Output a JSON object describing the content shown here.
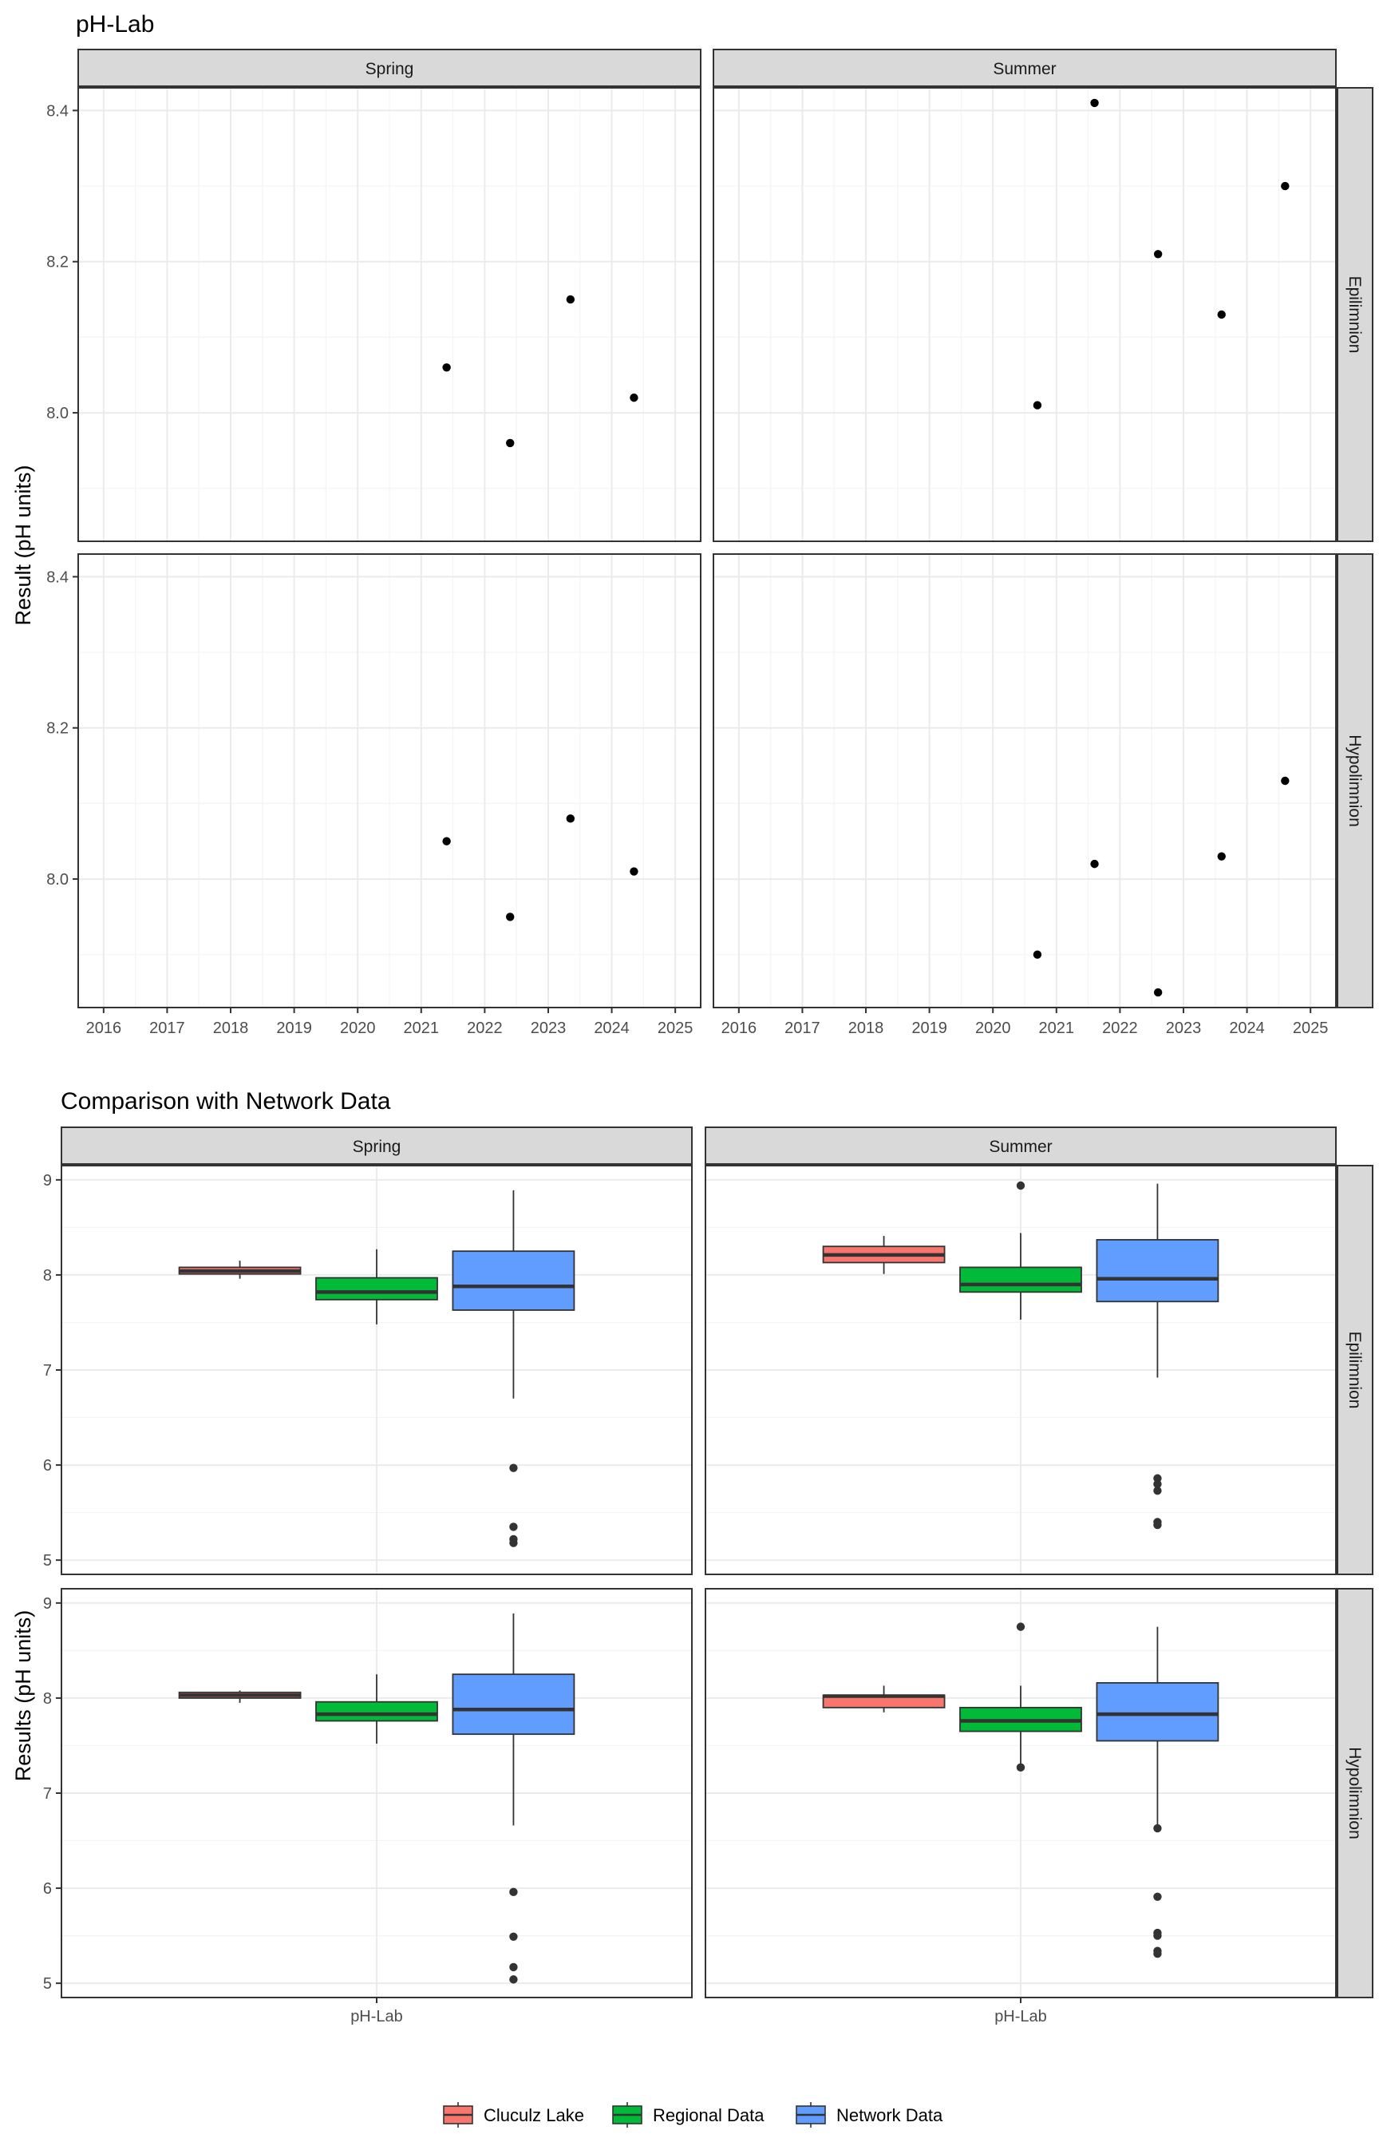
{
  "colors": {
    "cluculz": "#F8766D",
    "regional": "#00BA38",
    "network": "#619CFF",
    "point": "#000000",
    "outlier": "#333333"
  },
  "legend": {
    "items": [
      {
        "key": "cluculz",
        "label": "Cluculz Lake"
      },
      {
        "key": "regional",
        "label": "Regional Data"
      },
      {
        "key": "network",
        "label": "Network Data"
      }
    ]
  },
  "chart_data": [
    {
      "type": "scatter",
      "title": "pH-Lab",
      "ylabel": "Result (pH units)",
      "xlabel": "",
      "xlim": [
        2015.6,
        2025.4
      ],
      "ylim": [
        7.83,
        8.43
      ],
      "x_ticks": [
        2016,
        2017,
        2018,
        2019,
        2020,
        2021,
        2022,
        2023,
        2024,
        2025
      ],
      "x_tick_labels": [
        "2016",
        "2017",
        "2018",
        "2019",
        "2020",
        "2021",
        "2022",
        "2023",
        "2024",
        "2025"
      ],
      "y_ticks": [
        8.0,
        8.2,
        8.4
      ],
      "y_tick_labels": [
        "8.0",
        "8.2",
        "8.4"
      ],
      "columns": [
        "Spring",
        "Summer"
      ],
      "rows": [
        "Epilimnion",
        "Hypolimnion"
      ],
      "panels": [
        {
          "season": "Spring",
          "layer": "Epilimnion",
          "points": [
            {
              "x": 2021.4,
              "y": 8.06
            },
            {
              "x": 2022.4,
              "y": 7.96
            },
            {
              "x": 2023.35,
              "y": 8.15
            },
            {
              "x": 2024.35,
              "y": 8.02
            }
          ]
        },
        {
          "season": "Summer",
          "layer": "Epilimnion",
          "points": [
            {
              "x": 2020.7,
              "y": 8.01
            },
            {
              "x": 2021.6,
              "y": 8.41
            },
            {
              "x": 2022.6,
              "y": 8.21
            },
            {
              "x": 2023.6,
              "y": 8.13
            },
            {
              "x": 2024.6,
              "y": 8.3
            }
          ]
        },
        {
          "season": "Spring",
          "layer": "Hypolimnion",
          "points": [
            {
              "x": 2021.4,
              "y": 8.05
            },
            {
              "x": 2022.4,
              "y": 7.95
            },
            {
              "x": 2023.35,
              "y": 8.08
            },
            {
              "x": 2024.35,
              "y": 8.01
            }
          ]
        },
        {
          "season": "Summer",
          "layer": "Hypolimnion",
          "points": [
            {
              "x": 2020.7,
              "y": 7.9
            },
            {
              "x": 2021.6,
              "y": 8.02
            },
            {
              "x": 2022.6,
              "y": 7.85
            },
            {
              "x": 2023.6,
              "y": 8.03
            },
            {
              "x": 2024.6,
              "y": 8.13
            }
          ]
        }
      ]
    },
    {
      "type": "box",
      "title": "Comparison with Network Data",
      "ylabel": "Results (pH units)",
      "xlabel": "",
      "category": "pH-Lab",
      "ylim": [
        4.85,
        9.15
      ],
      "y_ticks": [
        5,
        6,
        7,
        8,
        9
      ],
      "y_tick_labels": [
        "5",
        "6",
        "7",
        "8",
        "9"
      ],
      "columns": [
        "Spring",
        "Summer"
      ],
      "rows": [
        "Epilimnion",
        "Hypolimnion"
      ],
      "legend_position": "bottom",
      "panels": [
        {
          "season": "Spring",
          "layer": "Epilimnion",
          "boxes": [
            {
              "group": "cluculz",
              "min": 7.96,
              "q1": 8.01,
              "median": 8.04,
              "q3": 8.08,
              "max": 8.15,
              "outliers": []
            },
            {
              "group": "regional",
              "min": 7.48,
              "q1": 7.74,
              "median": 7.82,
              "q3": 7.97,
              "max": 8.27,
              "outliers": []
            },
            {
              "group": "network",
              "min": 6.7,
              "q1": 7.63,
              "median": 7.88,
              "q3": 8.25,
              "max": 8.89,
              "outliers": [
                5.97,
                5.35,
                5.22,
                5.18
              ]
            }
          ]
        },
        {
          "season": "Summer",
          "layer": "Epilimnion",
          "boxes": [
            {
              "group": "cluculz",
              "min": 8.01,
              "q1": 8.13,
              "median": 8.21,
              "q3": 8.3,
              "max": 8.41,
              "outliers": []
            },
            {
              "group": "regional",
              "min": 7.53,
              "q1": 7.82,
              "median": 7.9,
              "q3": 8.08,
              "max": 8.44,
              "outliers": [
                8.94
              ]
            },
            {
              "group": "network",
              "min": 6.92,
              "q1": 7.72,
              "median": 7.96,
              "q3": 8.37,
              "max": 8.96,
              "outliers": [
                5.86,
                5.8,
                5.73,
                5.4,
                5.37
              ]
            }
          ]
        },
        {
          "season": "Spring",
          "layer": "Hypolimnion",
          "boxes": [
            {
              "group": "cluculz",
              "min": 7.95,
              "q1": 8.0,
              "median": 8.03,
              "q3": 8.06,
              "max": 8.08,
              "outliers": []
            },
            {
              "group": "regional",
              "min": 7.52,
              "q1": 7.76,
              "median": 7.83,
              "q3": 7.96,
              "max": 8.25,
              "outliers": []
            },
            {
              "group": "network",
              "min": 6.66,
              "q1": 7.62,
              "median": 7.88,
              "q3": 8.25,
              "max": 8.89,
              "outliers": [
                5.96,
                5.49,
                5.17,
                5.04
              ]
            }
          ]
        },
        {
          "season": "Summer",
          "layer": "Hypolimnion",
          "boxes": [
            {
              "group": "cluculz",
              "min": 7.85,
              "q1": 7.9,
              "median": 8.02,
              "q3": 8.03,
              "max": 8.13,
              "outliers": []
            },
            {
              "group": "regional",
              "min": 7.27,
              "q1": 7.65,
              "median": 7.76,
              "q3": 7.9,
              "max": 8.13,
              "outliers": [
                8.75,
                7.27
              ]
            },
            {
              "group": "network",
              "min": 6.63,
              "q1": 7.55,
              "median": 7.83,
              "q3": 8.16,
              "max": 8.75,
              "outliers": [
                6.63,
                5.91,
                5.53,
                5.5,
                5.34,
                5.31
              ]
            }
          ]
        }
      ]
    }
  ]
}
